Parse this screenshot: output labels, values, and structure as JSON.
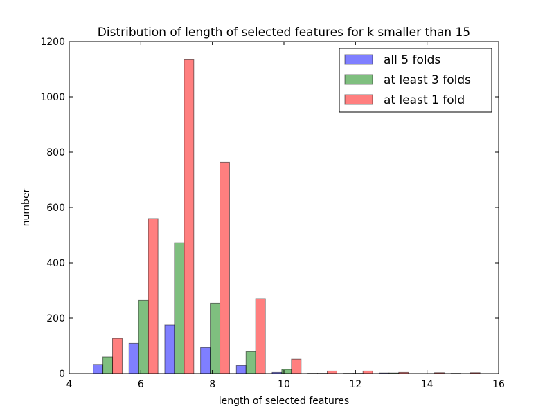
{
  "chart_data": {
    "type": "bar",
    "title": "Distribution of length of selected features for k smaller than 15",
    "xlabel": "length of selected features",
    "ylabel": "number",
    "xlim": [
      4,
      16
    ],
    "ylim": [
      0,
      1200
    ],
    "xticks": [
      4,
      6,
      8,
      10,
      12,
      14,
      16
    ],
    "yticks": [
      0,
      200,
      400,
      600,
      800,
      1000,
      1200
    ],
    "bar_width": 0.27,
    "legend_position": "top-right",
    "grid": false,
    "series": [
      {
        "name": "all 5 folds",
        "color": "#0000ff",
        "bars": [
          {
            "x": 4.67,
            "value": 33
          },
          {
            "x": 5.67,
            "value": 109
          },
          {
            "x": 6.67,
            "value": 175
          },
          {
            "x": 7.67,
            "value": 94
          },
          {
            "x": 8.67,
            "value": 29
          },
          {
            "x": 9.67,
            "value": 4
          },
          {
            "x": 10.67,
            "value": 1
          },
          {
            "x": 11.67,
            "value": 1
          },
          {
            "x": 12.67,
            "value": 2
          },
          {
            "x": 14.67,
            "value": 1
          }
        ]
      },
      {
        "name": "at least 3 folds",
        "color": "#008000",
        "bars": [
          {
            "x": 4.94,
            "value": 60
          },
          {
            "x": 5.94,
            "value": 264
          },
          {
            "x": 6.94,
            "value": 472
          },
          {
            "x": 7.94,
            "value": 254
          },
          {
            "x": 8.94,
            "value": 79
          },
          {
            "x": 9.94,
            "value": 15
          },
          {
            "x": 10.94,
            "value": 1
          },
          {
            "x": 11.94,
            "value": 1
          },
          {
            "x": 12.94,
            "value": 2
          }
        ]
      },
      {
        "name": "at least 1 fold",
        "color": "#ff0000",
        "bars": [
          {
            "x": 5.21,
            "value": 127
          },
          {
            "x": 6.21,
            "value": 560
          },
          {
            "x": 7.21,
            "value": 1134
          },
          {
            "x": 8.21,
            "value": 764
          },
          {
            "x": 9.21,
            "value": 270
          },
          {
            "x": 10.21,
            "value": 52
          },
          {
            "x": 11.21,
            "value": 9
          },
          {
            "x": 12.21,
            "value": 9
          },
          {
            "x": 13.21,
            "value": 4
          },
          {
            "x": 14.21,
            "value": 3
          },
          {
            "x": 15.21,
            "value": 3
          }
        ]
      }
    ]
  }
}
